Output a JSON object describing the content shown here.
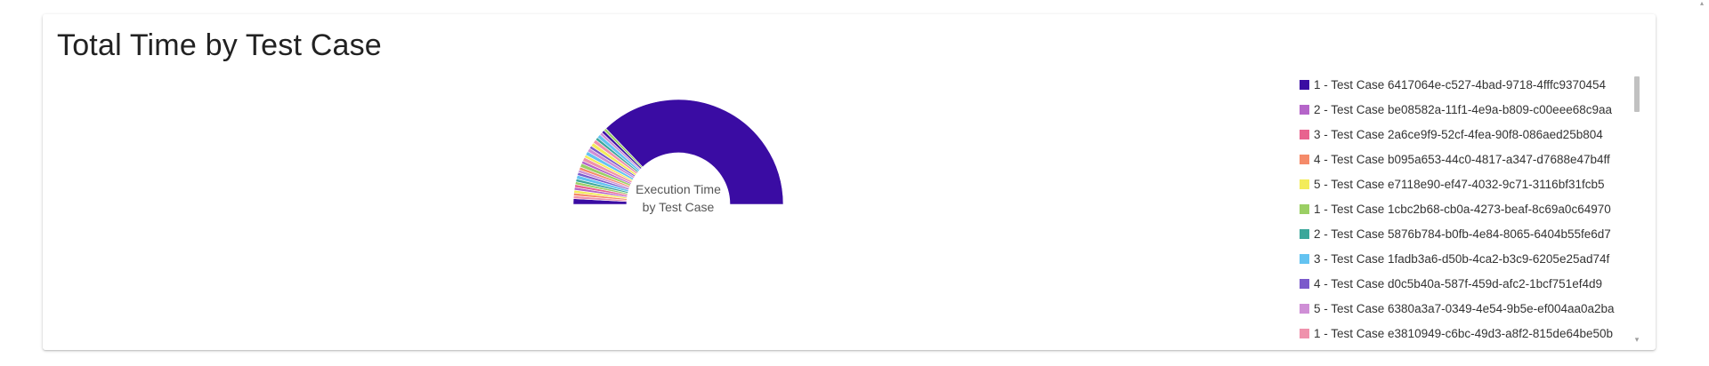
{
  "card": {
    "title": "Total Time by Test Case"
  },
  "chart_data": {
    "type": "pie",
    "variant": "semi-donut",
    "center_label_lines": [
      "Execution Time",
      "by Test Case"
    ],
    "legend_position": "right",
    "palette": [
      "#3a0ca3",
      "#b565c9",
      "#e8638f",
      "#f58b6a",
      "#f3ec5a",
      "#9bcf64",
      "#3aa79a",
      "#64c3f1",
      "#7b5acb",
      "#cf8fd6",
      "#ef92ac"
    ],
    "legend": [
      {
        "label": "1 - Test Case 6417064e-c527-4bad-9718-4fffc9370454",
        "color": "#3a0ca3"
      },
      {
        "label": "2 - Test Case be08582a-11f1-4e9a-b809-c00eee68c9aa",
        "color": "#b565c9"
      },
      {
        "label": "3 - Test Case 2a6ce9f9-52cf-4fea-90f8-086aed25b804",
        "color": "#e8638f"
      },
      {
        "label": "4 - Test Case b095a653-44c0-4817-a347-d7688e47b4ff",
        "color": "#f58b6a"
      },
      {
        "label": "5 - Test Case e7118e90-ef47-4032-9c71-3116bf31fcb5",
        "color": "#f3ec5a"
      },
      {
        "label": "1 - Test Case 1cbc2b68-cb0a-4273-beaf-8c69a0c64970",
        "color": "#9bcf64"
      },
      {
        "label": "2 - Test Case 5876b784-b0fb-4e84-8065-6404b55fe6d7",
        "color": "#3aa79a"
      },
      {
        "label": "3 - Test Case 1fadb3a6-d50b-4ca2-b3c9-6205e25ad74f",
        "color": "#64c3f1"
      },
      {
        "label": "4 - Test Case d0c5b40a-587f-459d-afc2-1bcf751ef4d9",
        "color": "#7b5acb"
      },
      {
        "label": "5 - Test Case 6380a3a7-0349-4e54-9b5e-ef004aa0a2ba",
        "color": "#cf8fd6"
      },
      {
        "label": "1 - Test Case e3810949-c6bc-49d3-a8f2-815de64be50b",
        "color": "#ef92ac"
      }
    ],
    "segments": [
      {
        "color": "#3a0ca3",
        "value": 3
      },
      {
        "color": "#ef92ac",
        "value": 1.5
      },
      {
        "color": "#f58b6a",
        "value": 1.5
      },
      {
        "color": "#f3ec5a",
        "value": 1.5
      },
      {
        "color": "#b565c9",
        "value": 1.5
      },
      {
        "color": "#e8638f",
        "value": 1.5
      },
      {
        "color": "#9bcf64",
        "value": 1.5
      },
      {
        "color": "#3aa79a",
        "value": 1.5
      },
      {
        "color": "#64c3f1",
        "value": 2
      },
      {
        "color": "#7b5acb",
        "value": 1.5
      },
      {
        "color": "#cf8fd6",
        "value": 1.5
      },
      {
        "color": "#f58b6a",
        "value": 1.5
      },
      {
        "color": "#9bcf64",
        "value": 2
      },
      {
        "color": "#b565c9",
        "value": 1.5
      },
      {
        "color": "#ef92ac",
        "value": 2
      },
      {
        "color": "#f3ec5a",
        "value": 1.5
      },
      {
        "color": "#64c3f1",
        "value": 2
      },
      {
        "color": "#cf8fd6",
        "value": 2
      },
      {
        "color": "#7b5acb",
        "value": 1.5
      },
      {
        "color": "#f3ec5a",
        "value": 2
      },
      {
        "color": "#ef92ac",
        "value": 2
      },
      {
        "color": "#3aa79a",
        "value": 1.5
      },
      {
        "color": "#64c3f1",
        "value": 2
      },
      {
        "color": "#cf8fd6",
        "value": 1.5
      },
      {
        "color": "#3a0ca3",
        "value": 1.5
      },
      {
        "color": "#9bcf64",
        "value": 1.5
      },
      {
        "color": "#3a0ca3",
        "value": 128
      }
    ]
  }
}
